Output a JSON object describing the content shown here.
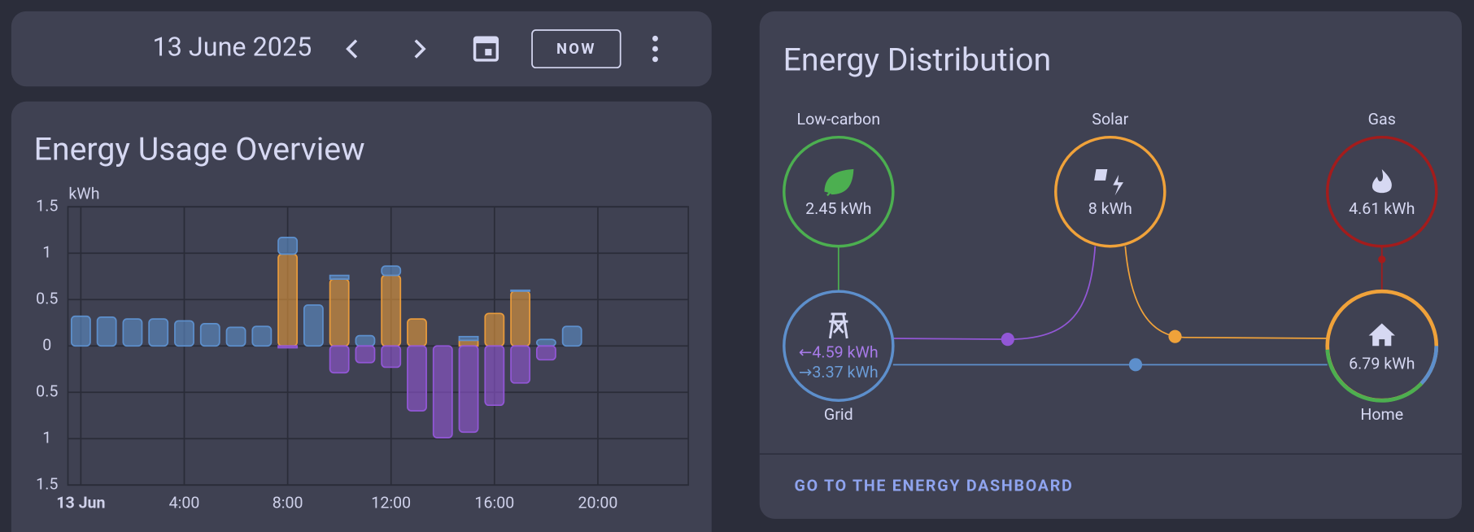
{
  "header": {
    "date": "13 June 2025",
    "now_button": "NOW"
  },
  "chart_data": {
    "type": "bar",
    "stacked": true,
    "title": "Energy Usage Overview",
    "y_unit": "kWh",
    "categories": [
      "13 Jun",
      null,
      null,
      null,
      "4:00",
      null,
      null,
      null,
      "8:00",
      null,
      null,
      null,
      "12:00",
      null,
      null,
      null,
      "16:00",
      null,
      null,
      null,
      "20:00",
      null,
      null,
      null
    ],
    "series": [
      {
        "color": "#e89b3c",
        "values": [
          0,
          0,
          0,
          0,
          0,
          0,
          0,
          0,
          0.99,
          0,
          0.72,
          0,
          0.76,
          0.29,
          0,
          0.06,
          0.35,
          0.59,
          0,
          0,
          null,
          null,
          null,
          null
        ]
      },
      {
        "color": "#5d8fcc",
        "values": [
          0.32,
          0.31,
          0.29,
          0.29,
          0.27,
          0.24,
          0.2,
          0.21,
          0.18,
          0.44,
          0.04,
          0.11,
          0.1,
          0,
          0,
          0.04,
          0,
          0.01,
          0.07,
          0.21,
          null,
          null,
          null,
          null
        ]
      },
      {
        "color": "#9257d6",
        "values": [
          0,
          0,
          0,
          0,
          0,
          0,
          0,
          0,
          -0.02,
          0,
          -0.29,
          -0.18,
          -0.23,
          -0.7,
          -0.99,
          -0.93,
          -0.64,
          -0.4,
          -0.15,
          0,
          null,
          null,
          null,
          null
        ]
      }
    ],
    "ylim": [
      -1.5,
      1.5
    ],
    "yticks": [
      {
        "value": -1.5,
        "label": "1.5"
      },
      {
        "value": -1,
        "label": "1"
      },
      {
        "value": -0.5,
        "label": "0.5"
      },
      0,
      0.5,
      1,
      1.5
    ],
    "grid": true
  },
  "distribution": {
    "title": "Energy Distribution",
    "low_carbon": {
      "label": "Low-carbon",
      "value": "2.45 kWh"
    },
    "solar": {
      "label": "Solar",
      "value": "8 kWh"
    },
    "gas": {
      "label": "Gas",
      "value": "4.61 kWh"
    },
    "grid": {
      "label": "Grid",
      "returned": "←4.59 kWh",
      "consumed": "→3.37 kWh"
    },
    "home": {
      "label": "Home",
      "value": "6.79 kWh"
    },
    "link": "GO TO THE ENERGY DASHBOARD"
  }
}
